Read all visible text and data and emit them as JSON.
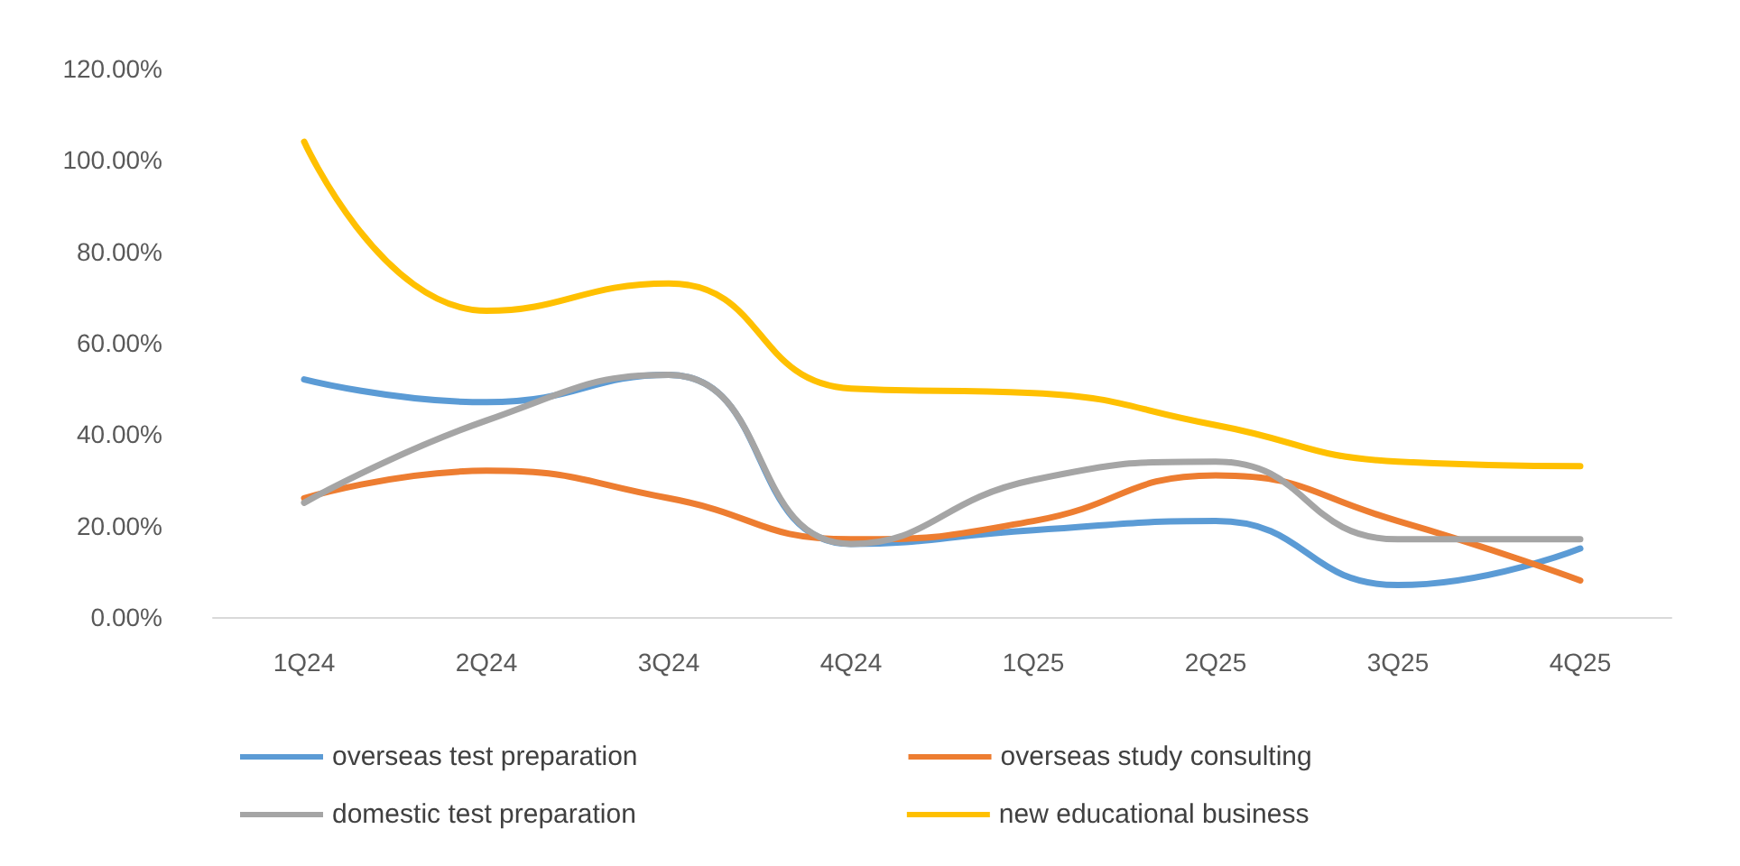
{
  "chart_data": {
    "type": "line",
    "categories": [
      "1Q24",
      "2Q24",
      "3Q24",
      "4Q24",
      "1Q25",
      "2Q25",
      "3Q25",
      "4Q25"
    ],
    "series": [
      {
        "name": "overseas test preparation",
        "color": "#5b9bd5",
        "values": [
          52,
          47,
          53,
          16,
          19,
          21,
          7,
          15
        ]
      },
      {
        "name": "overseas study consulting",
        "color": "#ed7d31",
        "values": [
          26,
          32,
          26,
          17,
          21,
          31,
          21,
          8
        ]
      },
      {
        "name": "domestic test preparation",
        "color": "#a5a5a5",
        "values": [
          25,
          43,
          53,
          16,
          30,
          34,
          17,
          17
        ]
      },
      {
        "name": "new educational business",
        "color": "#ffc000",
        "values": [
          104,
          67,
          73,
          50,
          49,
          42,
          34,
          33
        ]
      }
    ],
    "ylim": [
      0,
      120
    ],
    "yticks": [
      {
        "value": 0,
        "label": "0.00%"
      },
      {
        "value": 20,
        "label": "20.00%"
      },
      {
        "value": 40,
        "label": "40.00%"
      },
      {
        "value": 60,
        "label": "60.00%"
      },
      {
        "value": 80,
        "label": "80.00%"
      },
      {
        "value": 100,
        "label": "100.00%"
      },
      {
        "value": 120,
        "label": "120.00%"
      }
    ],
    "grid": false,
    "legend": "bottom",
    "marker": "none",
    "line_style": "solid"
  }
}
